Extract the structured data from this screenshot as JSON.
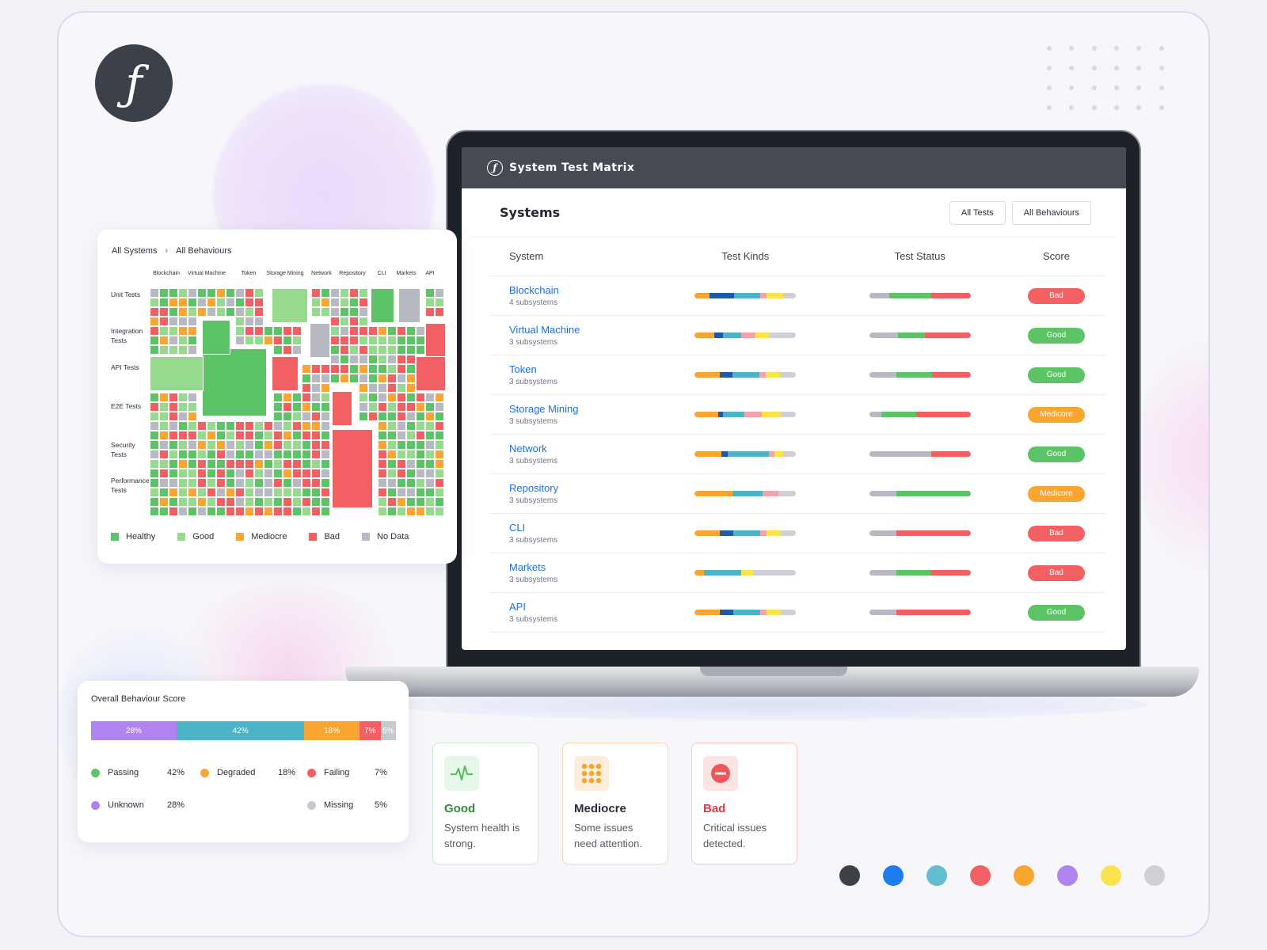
{
  "app": {
    "title": "System Test Matrix",
    "section_title": "Systems",
    "buttons": [
      "All Tests",
      "All Behaviours"
    ]
  },
  "table": {
    "columns": [
      "System",
      "Test Kinds",
      "Test Status",
      "Score"
    ],
    "rows": [
      {
        "name": "Blockchain",
        "sub": "4 subsystems",
        "score": "Bad"
      },
      {
        "name": "Virtual Machine",
        "sub": "3 subsystems",
        "score": "Good"
      },
      {
        "name": "Token",
        "sub": "3 subsystems",
        "score": "Good"
      },
      {
        "name": "Storage Mining",
        "sub": "3 subsystems",
        "score": "Medicore"
      },
      {
        "name": "Network",
        "sub": "3 subsystems",
        "score": "Good"
      },
      {
        "name": "Repository",
        "sub": "3 subsystems",
        "score": "Medicore"
      },
      {
        "name": "CLI",
        "sub": "3 subsystems",
        "score": "Bad"
      },
      {
        "name": "Markets",
        "sub": "3 subsystems",
        "score": "Bad"
      },
      {
        "name": "API",
        "sub": "3 subsystems",
        "score": "Good"
      }
    ]
  },
  "treemap": {
    "breadcrumb": [
      "All Systems",
      "All Behaviours"
    ],
    "columns": [
      "Blockchain",
      "Virtual Machine",
      "Token",
      "Storage Mining",
      "Network",
      "Repository",
      "CLI",
      "Markets",
      "API"
    ],
    "rows": [
      "Unit Tests",
      "Integration Tests",
      "API Tests",
      "E2E Tests",
      "Security Tests",
      "Performance Tests"
    ],
    "legend": [
      "Healthy",
      "Good",
      "Mediocre",
      "Bad",
      "No Data"
    ]
  },
  "overall": {
    "title": "Overall Behaviour Score",
    "segments": [
      {
        "label": "28%",
        "value": 28,
        "color": "#b084f0"
      },
      {
        "label": "42%",
        "value": 42,
        "color": "#4db4c6"
      },
      {
        "label": "18%",
        "value": 18,
        "color": "#f8a531"
      },
      {
        "label": "7%",
        "value": 7,
        "color": "#f26064"
      },
      {
        "label": "5%",
        "value": 5,
        "color": "#c7c9d1"
      }
    ],
    "legend": [
      {
        "name": "Passing",
        "pct": "42%",
        "color": "#5cc466"
      },
      {
        "name": "Degraded",
        "pct": "18%",
        "color": "#f8a531"
      },
      {
        "name": "Failing",
        "pct": "7%",
        "color": "#f26064"
      },
      {
        "name": "Unknown",
        "pct": "28%",
        "color": "#b084f0"
      },
      {
        "name": "Missing",
        "pct": "5%",
        "color": "#c7c9d1"
      }
    ]
  },
  "status_cards": [
    {
      "title": "Good",
      "desc": "System health is strong.",
      "icon": "heartbeat-icon"
    },
    {
      "title": "Mediocre",
      "desc": "Some issues need attention.",
      "icon": "grid-dots-icon"
    },
    {
      "title": "Bad",
      "desc": "Critical issues detected.",
      "icon": "stop-icon"
    }
  ],
  "palette": [
    "#3b4049",
    "#1f7cf0",
    "#63bfd0",
    "#f26064",
    "#f8a531",
    "#b084f0",
    "#f9e44e",
    "#cfd0d6"
  ],
  "colors": {
    "healthy": "#5cc466",
    "good": "#97d98f",
    "mediocre": "#f8a531",
    "bad": "#f26064",
    "nodata": "#b7bac2",
    "link": "#1f6fd6"
  }
}
